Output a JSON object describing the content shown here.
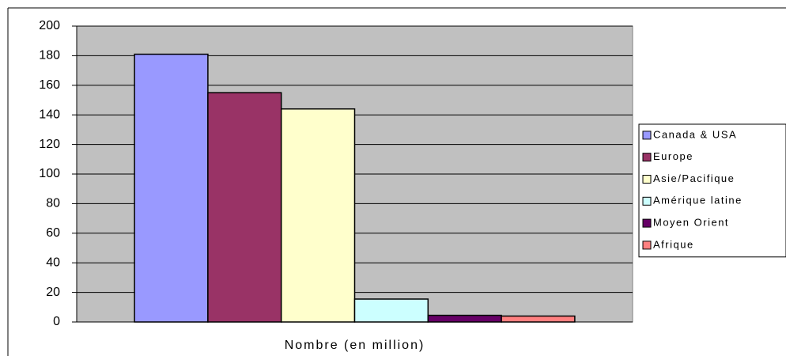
{
  "chart_data": {
    "type": "bar",
    "categories": [
      "Nombre (en million)"
    ],
    "series": [
      {
        "name": "Canada & USA",
        "color": "#9999ff",
        "values": [
          181
        ]
      },
      {
        "name": "Europe",
        "color": "#993366",
        "values": [
          155
        ]
      },
      {
        "name": "Asie/Pacifique",
        "color": "#ffffcc",
        "values": [
          144
        ]
      },
      {
        "name": "Amérique latine",
        "color": "#ccffff",
        "values": [
          15.5
        ]
      },
      {
        "name": "Moyen Orient",
        "color": "#660066",
        "values": [
          4.5
        ]
      },
      {
        "name": "Afrique",
        "color": "#ff8080",
        "values": [
          4
        ]
      }
    ],
    "ylim": [
      0,
      200
    ],
    "yticks": [
      0,
      20,
      40,
      60,
      80,
      100,
      120,
      140,
      160,
      180,
      200
    ],
    "grid": true,
    "legend": "right"
  }
}
